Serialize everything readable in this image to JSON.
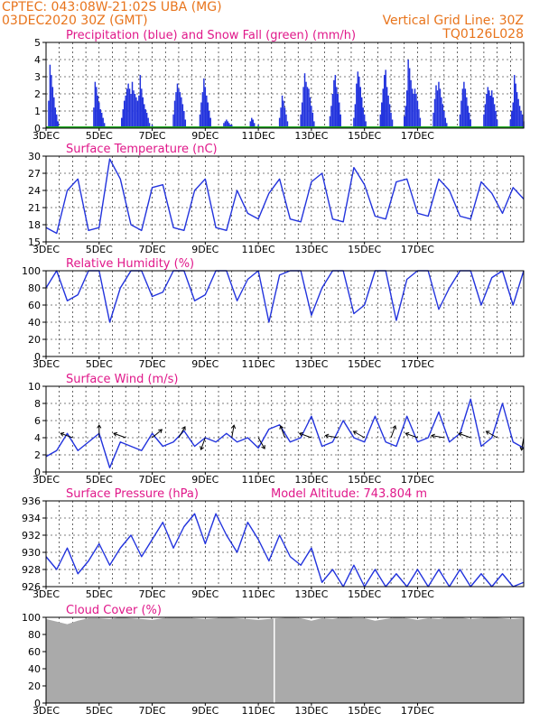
{
  "header": {
    "line1": "CPTEC:   043:08W-21:02S   UBA (MG)",
    "line2": "03DEC2020 30Z (GMT)",
    "grid_note": "Vertical Grid Line: 30Z",
    "code": "TQ0126L028",
    "color": "#e8741c"
  },
  "colors": {
    "title": "#e0188a",
    "line": "#2233dd",
    "precip": "#2233dd",
    "snow": "#22aa22",
    "cloud": "#aaaaaa",
    "wind_arrow": "#000000"
  },
  "x_ticks": [
    "3DEC",
    "5DEC",
    "7DEC",
    "9DEC",
    "11DEC",
    "13DEC",
    "15DEC",
    "17DEC"
  ],
  "chart_data": [
    {
      "type": "bar",
      "title": "Precipitation (blue) and Snow Fall (green) (mm/h)",
      "ylim": [
        0,
        5
      ],
      "y_ticks": [
        "0",
        "1",
        "2",
        "3",
        "4",
        "5"
      ],
      "x_days": [
        0.1,
        0.15,
        0.2,
        0.25,
        0.3,
        0.35,
        0.4,
        0.45,
        1.8,
        1.85,
        1.9,
        1.95,
        2.0,
        2.05,
        2.1,
        2.15,
        2.2,
        2.85,
        2.9,
        2.95,
        3.0,
        3.05,
        3.1,
        3.15,
        3.2,
        3.25,
        3.3,
        3.35,
        3.4,
        3.45,
        3.5,
        3.55,
        3.6,
        3.65,
        3.7,
        3.75,
        3.8,
        3.85,
        3.9,
        4.0,
        4.8,
        4.85,
        4.9,
        4.95,
        5.0,
        5.05,
        5.1,
        5.15,
        5.2,
        5.25,
        5.8,
        5.85,
        5.9,
        5.95,
        6.0,
        6.05,
        6.1,
        6.15,
        6.2,
        6.7,
        6.75,
        6.8,
        6.85,
        6.9,
        6.95,
        7.0,
        7.7,
        7.75,
        7.8,
        7.85,
        8.0,
        8.8,
        8.85,
        8.9,
        8.95,
        9.0,
        9.05,
        9.1,
        9.6,
        9.65,
        9.7,
        9.75,
        9.8,
        9.85,
        9.9,
        9.95,
        10.0,
        10.05,
        10.1,
        10.7,
        10.75,
        10.8,
        10.85,
        10.9,
        10.95,
        11.0,
        11.05,
        11.1,
        11.6,
        11.65,
        11.7,
        11.75,
        11.8,
        11.85,
        11.9,
        11.95,
        12.0,
        12.05,
        12.6,
        12.65,
        12.7,
        12.75,
        12.8,
        12.85,
        12.9,
        12.95,
        13.0,
        13.05,
        13.5,
        13.55,
        13.6,
        13.65,
        13.7,
        13.75,
        13.8,
        13.85,
        13.9,
        13.95,
        14.0,
        14.05,
        14.1,
        14.6,
        14.65,
        14.7,
        14.75,
        14.8,
        14.85,
        14.9,
        14.95,
        15.0,
        15.05,
        15.1,
        15.6,
        15.65,
        15.7,
        15.75,
        15.8,
        15.85,
        15.9,
        15.95,
        16.0,
        16.5,
        16.55,
        16.6,
        16.65,
        16.7,
        16.75,
        16.8,
        16.85,
        16.9,
        16.95,
        17.0,
        17.5,
        17.55,
        17.6,
        17.65,
        17.7,
        17.75,
        17.8,
        17.85,
        17.9,
        17.95,
        18.0
      ],
      "series": [
        {
          "values": [
            1.6,
            3.7,
            3.1,
            2.4,
            1.8,
            1.2,
            0.8,
            0.4,
            1.2,
            2.7,
            2.4,
            1.9,
            1.5,
            1.1,
            0.9,
            0.6,
            0.3,
            0.6,
            1.1,
            1.6,
            1.9,
            2.3,
            2.6,
            2.3,
            2.0,
            2.7,
            2.2,
            2.0,
            1.8,
            1.6,
            1.9,
            3.1,
            2.3,
            1.8,
            1.4,
            1.1,
            0.9,
            0.6,
            0.3,
            0.2,
            0.8,
            1.6,
            2.1,
            2.6,
            2.3,
            2.1,
            1.8,
            1.4,
            1.0,
            0.5,
            0.8,
            1.5,
            2.1,
            2.9,
            2.4,
            1.9,
            1.5,
            1.0,
            0.6,
            0.3,
            0.4,
            0.5,
            0.4,
            0.3,
            0.2,
            0.2,
            0.4,
            0.6,
            0.5,
            0.3,
            0.2,
            0.6,
            1.2,
            1.9,
            1.6,
            1.2,
            0.8,
            0.4,
            0.8,
            1.5,
            2.4,
            3.2,
            2.7,
            2.4,
            2.3,
            1.8,
            1.3,
            0.9,
            0.4,
            0.7,
            1.3,
            2.0,
            2.8,
            3.1,
            2.4,
            2.0,
            1.5,
            0.8,
            0.6,
            1.4,
            2.6,
            3.3,
            3.0,
            2.4,
            1.8,
            1.2,
            0.8,
            0.4,
            0.8,
            1.5,
            2.3,
            3.1,
            3.4,
            2.4,
            1.9,
            1.4,
            0.9,
            0.5,
            0.7,
            1.3,
            2.2,
            4.0,
            3.5,
            2.8,
            2.3,
            2.0,
            2.3,
            2.0,
            1.6,
            1.1,
            0.6,
            0.9,
            1.7,
            2.5,
            2.2,
            2.7,
            2.3,
            1.8,
            1.4,
            1.0,
            0.6,
            0.3,
            0.8,
            1.6,
            2.3,
            2.7,
            2.3,
            1.8,
            1.3,
            0.9,
            0.5,
            0.8,
            1.4,
            2.0,
            2.4,
            2.2,
            1.9,
            2.2,
            1.8,
            1.4,
            1.0,
            0.5,
            0.5,
            1.0,
            1.5,
            3.1,
            2.6,
            2.1,
            1.7,
            1.3,
            1.0,
            0.8,
            0.4
          ]
        },
        {
          "values": [
            0.05,
            0.05
          ]
        }
      ]
    },
    {
      "type": "line",
      "title": "Surface Temperature (nC)",
      "ylim": [
        15,
        30
      ],
      "y_ticks": [
        "15",
        "18",
        "21",
        "24",
        "27",
        "30"
      ],
      "x": [
        0,
        0.4,
        0.8,
        1.2,
        1.6,
        2.0,
        2.4,
        2.8,
        3.2,
        3.6,
        4.0,
        4.4,
        4.8,
        5.2,
        5.6,
        6.0,
        6.4,
        6.8,
        7.2,
        7.6,
        8.0,
        8.4,
        8.8,
        9.2,
        9.6,
        10.0,
        10.4,
        10.8,
        11.2,
        11.6,
        12.0,
        12.4,
        12.8,
        13.2,
        13.6,
        14.0,
        14.4,
        14.8,
        15.2,
        15.6,
        16.0,
        16.4,
        16.8,
        17.2,
        17.6,
        18.0
      ],
      "series": [
        {
          "values": [
            17.5,
            16.5,
            24.0,
            26.0,
            17.0,
            17.5,
            29.5,
            26.0,
            18.0,
            17.0,
            24.5,
            25.0,
            17.5,
            17.0,
            24.0,
            26.0,
            17.5,
            17.0,
            24.0,
            20.0,
            19.0,
            23.5,
            26.0,
            19.0,
            18.5,
            25.5,
            27.0,
            19.0,
            18.5,
            28.0,
            25.0,
            19.5,
            19.0,
            25.5,
            26.0,
            20.0,
            19.5,
            26.0,
            24.0,
            19.5,
            19.0,
            25.5,
            23.5,
            20.0,
            24.5,
            22.5
          ]
        }
      ]
    },
    {
      "type": "line",
      "title": "Relative Humidity (%)",
      "ylim": [
        0,
        100
      ],
      "y_ticks": [
        "0",
        "20",
        "40",
        "60",
        "80",
        "100"
      ],
      "x": [
        0,
        0.4,
        0.8,
        1.2,
        1.6,
        2.0,
        2.4,
        2.8,
        3.2,
        3.6,
        4.0,
        4.4,
        4.8,
        5.2,
        5.6,
        6.0,
        6.4,
        6.8,
        7.2,
        7.6,
        8.0,
        8.4,
        8.8,
        9.2,
        9.6,
        10.0,
        10.4,
        10.8,
        11.2,
        11.6,
        12.0,
        12.4,
        12.8,
        13.2,
        13.6,
        14.0,
        14.4,
        14.8,
        15.2,
        15.6,
        16.0,
        16.4,
        16.8,
        17.2,
        17.6,
        18.0
      ],
      "series": [
        {
          "values": [
            80,
            100,
            65,
            72,
            100,
            100,
            40,
            80,
            100,
            100,
            70,
            75,
            100,
            100,
            65,
            72,
            100,
            100,
            65,
            90,
            100,
            40,
            95,
            100,
            100,
            48,
            80,
            100,
            100,
            50,
            60,
            100,
            100,
            42,
            90,
            100,
            100,
            55,
            80,
            100,
            100,
            60,
            92,
            100,
            60,
            100
          ]
        }
      ]
    },
    {
      "type": "line",
      "title": "Surface Wind (m/s)",
      "ylim": [
        0,
        10
      ],
      "y_ticks": [
        "0",
        "2",
        "4",
        "6",
        "8",
        "10"
      ],
      "x": [
        0,
        0.4,
        0.8,
        1.2,
        1.6,
        2.0,
        2.4,
        2.8,
        3.2,
        3.6,
        4.0,
        4.4,
        4.8,
        5.2,
        5.6,
        6.0,
        6.4,
        6.8,
        7.2,
        7.6,
        8.0,
        8.4,
        8.8,
        9.2,
        9.6,
        10.0,
        10.4,
        10.8,
        11.2,
        11.6,
        12.0,
        12.4,
        12.8,
        13.2,
        13.6,
        14.0,
        14.4,
        14.8,
        15.2,
        15.6,
        16.0,
        16.4,
        16.8,
        17.2,
        17.6,
        18.0
      ],
      "series": [
        {
          "values": [
            1.8,
            2.5,
            4.5,
            2.5,
            3.5,
            4.5,
            0.5,
            3.5,
            3.0,
            2.5,
            4.5,
            3.0,
            3.5,
            4.8,
            3.0,
            4.0,
            3.5,
            4.5,
            3.5,
            4.0,
            2.8,
            5.0,
            5.5,
            3.5,
            4.0,
            6.5,
            3.0,
            3.5,
            6.0,
            4.0,
            3.5,
            6.5,
            3.5,
            3.0,
            6.5,
            3.5,
            4.0,
            7.0,
            3.5,
            4.5,
            8.5,
            3.0,
            4.0,
            8.0,
            3.5,
            2.8
          ]
        }
      ],
      "wind_arrows_x": [
        1.0,
        2.0,
        3.0,
        4.0,
        5.0,
        6.0,
        7.0,
        8.0,
        9.0,
        10.0,
        11.0,
        12.0,
        13.0,
        14.0,
        15.0,
        16.0,
        17.0,
        18.0
      ],
      "wind_arrows_dir": [
        200,
        270,
        200,
        320,
        300,
        110,
        280,
        60,
        250,
        200,
        190,
        210,
        290,
        200,
        190,
        200,
        210,
        100
      ]
    },
    {
      "type": "line",
      "title": "Surface Pressure (hPa)",
      "annotation": "Model Altitude: 743.804 m",
      "ylim": [
        926,
        936
      ],
      "y_ticks": [
        "926",
        "928",
        "930",
        "932",
        "934",
        "936"
      ],
      "x": [
        0,
        0.4,
        0.8,
        1.2,
        1.6,
        2.0,
        2.4,
        2.8,
        3.2,
        3.6,
        4.0,
        4.4,
        4.8,
        5.2,
        5.6,
        6.0,
        6.4,
        6.8,
        7.2,
        7.6,
        8.0,
        8.4,
        8.8,
        9.2,
        9.6,
        10.0,
        10.4,
        10.8,
        11.2,
        11.6,
        12.0,
        12.4,
        12.8,
        13.2,
        13.6,
        14.0,
        14.4,
        14.8,
        15.2,
        15.6,
        16.0,
        16.4,
        16.8,
        17.2,
        17.6,
        18.0
      ],
      "series": [
        {
          "values": [
            929.5,
            928.0,
            930.5,
            927.5,
            929.0,
            931.0,
            928.5,
            930.5,
            932.0,
            929.5,
            931.5,
            933.5,
            930.5,
            933.0,
            934.5,
            931.0,
            934.5,
            932.0,
            930.0,
            933.5,
            931.5,
            929.0,
            932.0,
            929.5,
            928.5,
            930.5,
            926.5,
            928.0,
            926.0,
            928.5,
            926.0,
            928.0,
            926.0,
            927.5,
            926.0,
            928.0,
            926.0,
            928.0,
            926.0,
            928.0,
            926.0,
            927.5,
            926.0,
            927.5,
            926.0,
            926.5
          ]
        }
      ]
    },
    {
      "type": "area",
      "title": "Cloud Cover (%)",
      "ylim": [
        0,
        100
      ],
      "y_ticks": [
        "0",
        "20",
        "40",
        "60",
        "80",
        "100"
      ],
      "x": [
        0,
        0.4,
        0.8,
        1.2,
        1.6,
        2.0,
        2.4,
        2.8,
        3.2,
        3.6,
        4.0,
        4.4,
        4.8,
        5.2,
        5.6,
        6.0,
        6.4,
        6.8,
        7.2,
        7.6,
        8.0,
        8.4,
        8.8,
        9.2,
        9.6,
        10.0,
        10.4,
        10.8,
        11.2,
        11.6,
        12.0,
        12.4,
        12.8,
        13.2,
        13.6,
        14.0,
        14.4,
        14.8,
        15.2,
        15.6,
        16.0,
        16.4,
        16.8,
        17.2,
        17.6,
        18.0
      ],
      "series": [
        {
          "values": [
            98,
            95,
            92,
            96,
            99,
            99,
            98,
            100,
            99,
            98,
            97,
            99,
            100,
            100,
            99,
            98,
            99,
            100,
            99,
            98,
            97,
            98,
            99,
            100,
            99,
            96,
            99,
            98,
            100,
            99,
            99,
            96,
            98,
            100,
            99,
            97,
            99,
            98,
            100,
            100,
            98,
            99,
            100,
            99,
            98,
            99
          ]
        }
      ]
    }
  ]
}
